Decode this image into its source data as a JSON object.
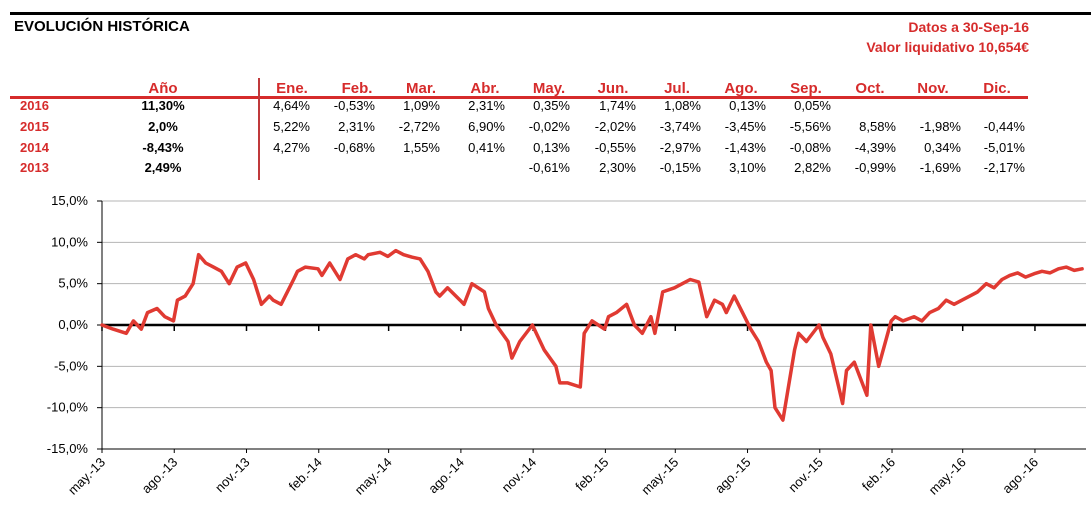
{
  "header": {
    "title": "EVOLUCIÓN HISTÓRICA",
    "date_line": "Datos a 30-Sep-16",
    "nav_line": "Valor liquidativo 10,654€"
  },
  "table": {
    "columns": [
      "Año",
      "Ene.",
      "Feb.",
      "Mar.",
      "Abr.",
      "May.",
      "Jun.",
      "Jul.",
      "Ago.",
      "Sep.",
      "Oct.",
      "Nov.",
      "Dic."
    ],
    "rows": [
      {
        "year": "2016",
        "total": "11,30%",
        "months": [
          "4,64%",
          "-0,53%",
          "1,09%",
          "2,31%",
          "0,35%",
          "1,74%",
          "1,08%",
          "0,13%",
          "0,05%",
          "",
          "",
          ""
        ]
      },
      {
        "year": "2015",
        "total": "2,0%",
        "months": [
          "5,22%",
          "2,31%",
          "-2,72%",
          "6,90%",
          "-0,02%",
          "-2,02%",
          "-3,74%",
          "-3,45%",
          "-5,56%",
          "8,58%",
          "-1,98%",
          "-0,44%"
        ]
      },
      {
        "year": "2014",
        "total": "-8,43%",
        "months": [
          "4,27%",
          "-0,68%",
          "1,55%",
          "0,41%",
          "0,13%",
          "-0,55%",
          "-2,97%",
          "-1,43%",
          "-0,08%",
          "-4,39%",
          "0,34%",
          "-5,01%"
        ]
      },
      {
        "year": "2013",
        "total": "2,49%",
        "months": [
          "",
          "",
          "",
          "",
          "-0,61%",
          "2,30%",
          "-0,15%",
          "3,10%",
          "2,82%",
          "-0,99%",
          "-1,69%",
          "-2,17%"
        ]
      }
    ]
  },
  "chart_data": {
    "type": "line",
    "title": "",
    "xlabel": "",
    "ylabel": "",
    "ylim": [
      -15,
      15
    ],
    "y_ticks": [
      15,
      10,
      5,
      0,
      -5,
      -10,
      -15
    ],
    "y_tick_labels": [
      "15,0%",
      "10,0%",
      "5,0%",
      "0,0%",
      "-5,0%",
      "-10,0%",
      "-15,0%"
    ],
    "x_ticks": [
      "may.-13",
      "ago.-13",
      "nov.-13",
      "feb.-14",
      "may.-14",
      "ago.-14",
      "nov.-14",
      "feb.-15",
      "may.-15",
      "ago.-15",
      "nov.-15",
      "feb.-16",
      "may.-16",
      "ago.-16"
    ],
    "x_range": [
      "2013-05-01",
      "2016-09-30"
    ],
    "grid": "horizontal",
    "line_color": "#e03a32",
    "series": [
      {
        "x": [
          "2013-05-01",
          "2013-05-15",
          "2013-06-01",
          "2013-06-10",
          "2013-06-20",
          "2013-06-28",
          "2013-07-10",
          "2013-07-20",
          "2013-07-31",
          "2013-08-05",
          "2013-08-15",
          "2013-08-25",
          "2013-09-01",
          "2013-09-10",
          "2013-09-20",
          "2013-09-30",
          "2013-10-10",
          "2013-10-20",
          "2013-10-31",
          "2013-11-10",
          "2013-11-20",
          "2013-11-30",
          "2013-12-05",
          "2013-12-15",
          "2013-12-31",
          "2014-01-05",
          "2014-01-15",
          "2014-01-31",
          "2014-02-05",
          "2014-02-15",
          "2014-02-28",
          "2014-03-10",
          "2014-03-20",
          "2014-03-31",
          "2014-04-05",
          "2014-04-20",
          "2014-04-30",
          "2014-05-10",
          "2014-05-20",
          "2014-05-31",
          "2014-06-10",
          "2014-06-20",
          "2014-06-30",
          "2014-07-05",
          "2014-07-15",
          "2014-07-31",
          "2014-08-05",
          "2014-08-15",
          "2014-08-31",
          "2014-09-05",
          "2014-09-15",
          "2014-09-30",
          "2014-10-05",
          "2014-10-15",
          "2014-10-31",
          "2014-11-05",
          "2014-11-15",
          "2014-11-30",
          "2014-12-05",
          "2014-12-15",
          "2014-12-31",
          "2015-01-05",
          "2015-01-15",
          "2015-01-31",
          "2015-02-05",
          "2015-02-15",
          "2015-02-28",
          "2015-03-10",
          "2015-03-20",
          "2015-03-31",
          "2015-04-05",
          "2015-04-15",
          "2015-04-30",
          "2015-05-10",
          "2015-05-20",
          "2015-05-31",
          "2015-06-10",
          "2015-06-20",
          "2015-06-30",
          "2015-07-05",
          "2015-07-15",
          "2015-07-31",
          "2015-08-05",
          "2015-08-15",
          "2015-08-25",
          "2015-08-31",
          "2015-09-05",
          "2015-09-15",
          "2015-09-30",
          "2015-10-05",
          "2015-10-15",
          "2015-10-31",
          "2015-11-05",
          "2015-11-15",
          "2015-11-30",
          "2015-12-05",
          "2015-12-15",
          "2015-12-31",
          "2016-01-05",
          "2016-01-15",
          "2016-01-31",
          "2016-02-05",
          "2016-02-15",
          "2016-02-29",
          "2016-03-10",
          "2016-03-20",
          "2016-03-31",
          "2016-04-10",
          "2016-04-20",
          "2016-04-30",
          "2016-05-10",
          "2016-05-20",
          "2016-05-31",
          "2016-06-10",
          "2016-06-20",
          "2016-06-30",
          "2016-07-10",
          "2016-07-20",
          "2016-07-31",
          "2016-08-10",
          "2016-08-20",
          "2016-08-31",
          "2016-09-10",
          "2016-09-20",
          "2016-09-30"
        ],
        "y": [
          0.0,
          -0.5,
          -1.0,
          0.5,
          -0.5,
          1.5,
          2.0,
          1.0,
          0.5,
          3.0,
          3.5,
          5.0,
          8.5,
          7.5,
          7.0,
          6.5,
          5.0,
          7.0,
          7.5,
          5.5,
          2.5,
          3.5,
          3.0,
          2.5,
          5.5,
          6.5,
          7.0,
          6.8,
          6.0,
          7.5,
          5.5,
          8.0,
          8.5,
          8.0,
          8.5,
          8.8,
          8.3,
          9.0,
          8.5,
          8.2,
          8.0,
          6.5,
          4.0,
          3.5,
          4.5,
          3.0,
          2.5,
          5.0,
          4.0,
          2.0,
          0.0,
          -2.0,
          -4.0,
          -2.0,
          0.0,
          -1.0,
          -3.0,
          -5.0,
          -7.0,
          -7.0,
          -7.5,
          -1.0,
          0.5,
          -0.5,
          1.0,
          1.5,
          2.5,
          0.0,
          -1.0,
          1.0,
          -1.0,
          4.0,
          4.5,
          5.0,
          5.5,
          5.2,
          1.0,
          3.0,
          2.5,
          1.5,
          3.5,
          0.5,
          -0.5,
          -2.0,
          -4.5,
          -5.5,
          -10.0,
          -11.5,
          -3.0,
          -1.0,
          -2.0,
          0.0,
          -1.5,
          -3.5,
          -9.5,
          -5.5,
          -4.5,
          -8.5,
          0.0,
          -5.0,
          0.5,
          1.0,
          0.5,
          1.0,
          0.5,
          1.5,
          2.0,
          3.0,
          2.5,
          3.0,
          3.5,
          4.0,
          5.0,
          4.5,
          5.5,
          6.0,
          6.3,
          5.8,
          6.2,
          6.5,
          6.3,
          6.8,
          7.0,
          6.6,
          6.8
        ]
      }
    ]
  }
}
